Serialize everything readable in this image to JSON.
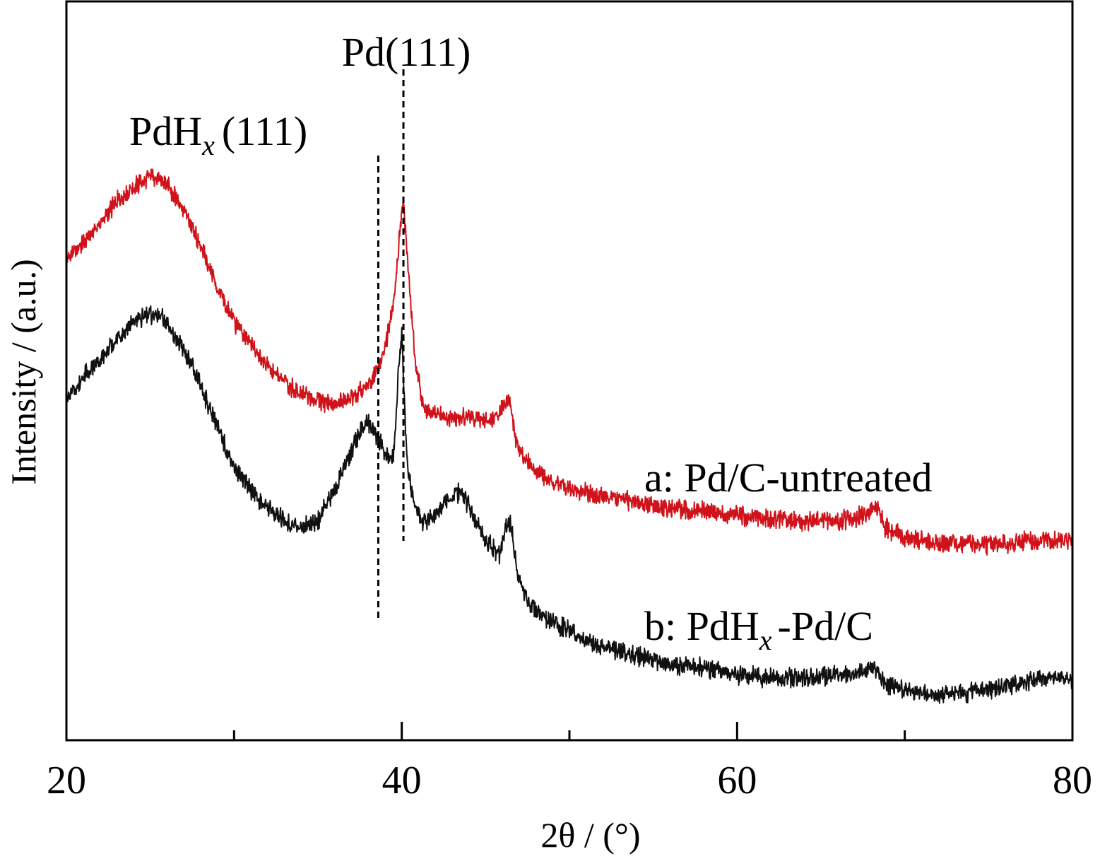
{
  "chart_data": {
    "type": "line",
    "xlabel": "2θ / (°)",
    "ylabel": "Intensity / (a.u.)",
    "xlim": [
      20,
      80
    ],
    "ylim": [
      0,
      100
    ],
    "xticks_major": [
      20,
      40,
      60,
      80
    ],
    "xticks_minor": [
      30,
      50,
      70
    ],
    "xtick_labels": [
      "20",
      "40",
      "60",
      "80"
    ],
    "grid": false,
    "annotations": [
      {
        "text": "Pd(111)",
        "x": 40.1
      },
      {
        "text": "PdH",
        "sub": "x",
        "suffix": "(111)",
        "x": 38.6
      }
    ],
    "reference_lines": [
      {
        "label": "Pd(111)",
        "x": 40.1
      },
      {
        "label": "PdH_x(111)",
        "x": 38.6
      }
    ],
    "series": [
      {
        "name": "a: Pd/C-untreated",
        "label_prefix": "a: Pd/C-untreated",
        "color": "#d0131b",
        "x": [
          20,
          21,
          22,
          23,
          24,
          25,
          25.5,
          26,
          27,
          28,
          29,
          30,
          31,
          32,
          33,
          34,
          35,
          36,
          37,
          37.8,
          38.5,
          39,
          39.5,
          39.8,
          40.1,
          40.4,
          40.8,
          41.3,
          42,
          43,
          44,
          45,
          45.8,
          46.4,
          46.8,
          47.5,
          48.5,
          50,
          52,
          54,
          56,
          58,
          60,
          62,
          64,
          66,
          67.5,
          68.3,
          68.8,
          70,
          72,
          74,
          76,
          78,
          80
        ],
        "y": [
          66.3,
          68.9,
          71.4,
          74.4,
          76.5,
          77.9,
          77.8,
          77.0,
          73.4,
          68.3,
          62.4,
          57.5,
          54.1,
          51.3,
          49.0,
          47.3,
          46.3,
          45.8,
          46.6,
          48.0,
          50.5,
          53.5,
          60.0,
          68.0,
          75.0,
          64.0,
          52.0,
          45.2,
          44.3,
          44.1,
          43.9,
          43.5,
          44.5,
          46.8,
          40.8,
          37.6,
          35.6,
          33.8,
          32.9,
          31.9,
          31.1,
          30.6,
          30.1,
          29.6,
          29.3,
          29.3,
          30.1,
          31.5,
          28.5,
          27.0,
          26.2,
          25.9,
          26.1,
          26.6,
          26.6
        ]
      },
      {
        "name": "b: PdH",
        "label_prefix": "b: PdH",
        "label_sub": "x",
        "label_suffix": "-Pd/C",
        "color": "#111111",
        "x": [
          20,
          21,
          22,
          23,
          24,
          25,
          25.5,
          26,
          27,
          28,
          29,
          30,
          31,
          32,
          33,
          34,
          35,
          36,
          37,
          37.5,
          38,
          38.5,
          39,
          39.5,
          39.8,
          40.0,
          40.3,
          40.7,
          41.2,
          42,
          43,
          43.5,
          44,
          45,
          45.8,
          46.2,
          46.5,
          46.9,
          47.5,
          48.5,
          50,
          52,
          54,
          56,
          58,
          60,
          62,
          64,
          66,
          67.5,
          68.2,
          68.8,
          70,
          72,
          74,
          76,
          78,
          79,
          80
        ],
        "y": [
          46.3,
          49.6,
          52.0,
          54.9,
          57.5,
          58.5,
          58.4,
          57.2,
          53.4,
          48.5,
          42.5,
          37.2,
          33.6,
          31.0,
          29.4,
          28.3,
          29.3,
          33.6,
          39.1,
          42.2,
          43.3,
          41.3,
          39.0,
          38.0,
          50.0,
          56.5,
          38.0,
          31.8,
          29.0,
          30.2,
          32.8,
          33.4,
          31.4,
          26.6,
          24.4,
          28.4,
          28.9,
          21.6,
          17.9,
          15.9,
          13.6,
          11.5,
          10.2,
          9.2,
          8.4,
          7.6,
          7.2,
          7.1,
          7.5,
          8.0,
          8.6,
          6.3,
          5.3,
          4.7,
          5.2,
          5.9,
          6.8,
          7.3,
          6.8
        ]
      }
    ]
  }
}
